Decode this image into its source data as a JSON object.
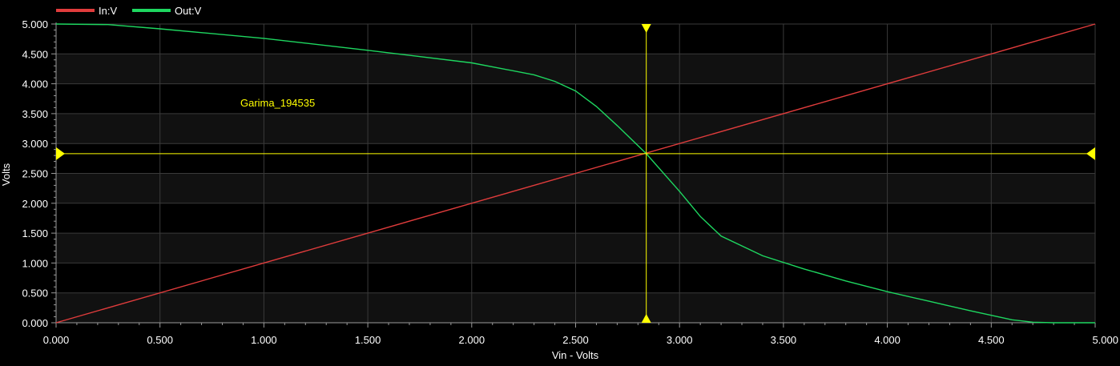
{
  "legend": [
    {
      "label": "In:V",
      "color": "#e03c3c"
    },
    {
      "label": "Out:V",
      "color": "#1ed760"
    }
  ],
  "colors": {
    "background": "#000000",
    "plot_band_light": "#111111",
    "plot_band_dark": "#000000",
    "grid": "#3a3a3a",
    "axis": "#9a9a9a",
    "tick_text": "#ffffff",
    "cursor": "#ffff00",
    "annotation": "#ffff00"
  },
  "annotation": {
    "text": "Garima_194535"
  },
  "cursor": {
    "x": 2.84,
    "y": 2.83
  },
  "chart_data": {
    "type": "line",
    "title": "",
    "xlabel": "Vin - Volts",
    "ylabel": "Volts",
    "xlim": [
      0,
      5
    ],
    "ylim": [
      0,
      5
    ],
    "grid": true,
    "legend_position": "top-left",
    "x_ticks": [
      "0.000",
      "0.500",
      "1.000",
      "1.500",
      "2.000",
      "2.500",
      "3.000",
      "3.500",
      "4.000",
      "4.500",
      "5.000"
    ],
    "y_ticks": [
      "0.000",
      "0.500",
      "1.000",
      "1.500",
      "2.000",
      "2.500",
      "3.000",
      "3.500",
      "4.000",
      "4.500",
      "5.000"
    ],
    "series": [
      {
        "name": "In:V",
        "color": "#e03c3c",
        "x": [
          0,
          5
        ],
        "y": [
          0,
          5
        ]
      },
      {
        "name": "Out:V",
        "color": "#1ed760",
        "x": [
          0,
          0.25,
          0.5,
          1.0,
          1.5,
          2.0,
          2.3,
          2.4,
          2.5,
          2.6,
          2.7,
          2.84,
          3.0,
          3.1,
          3.2,
          3.4,
          3.6,
          3.8,
          4.0,
          4.2,
          4.4,
          4.6,
          4.7,
          4.8,
          5.0
        ],
        "y": [
          5.0,
          4.99,
          4.92,
          4.76,
          4.56,
          4.35,
          4.15,
          4.04,
          3.88,
          3.62,
          3.3,
          2.83,
          2.2,
          1.78,
          1.45,
          1.12,
          0.9,
          0.7,
          0.52,
          0.36,
          0.2,
          0.05,
          0.01,
          0.0,
          0.0
        ]
      }
    ]
  }
}
